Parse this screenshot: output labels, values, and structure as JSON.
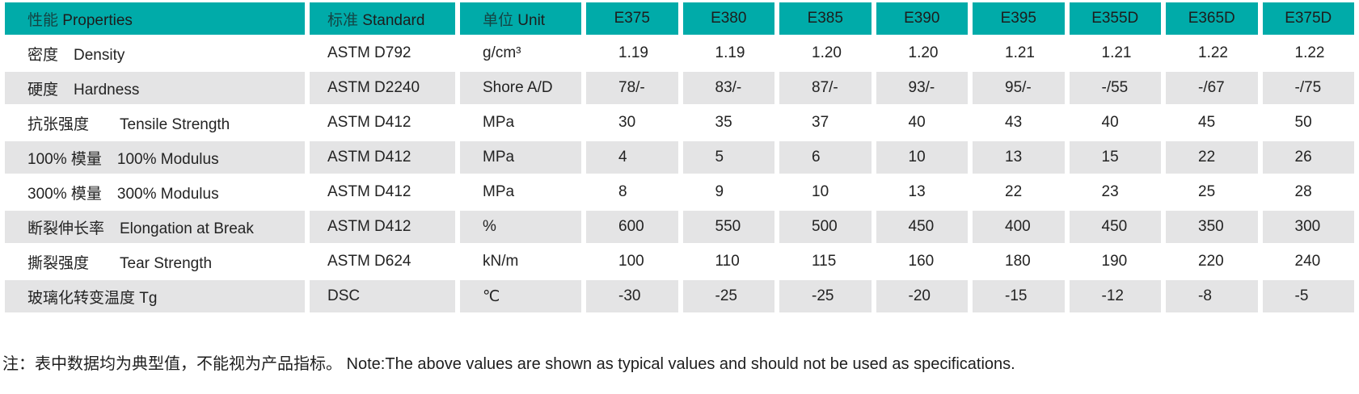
{
  "theme": {
    "header_bg": "#00aba9",
    "stripe_bg": "#e4e4e5",
    "text_color": "#232323"
  },
  "table": {
    "columns": [
      {
        "zh": "性能",
        "en": "Properties"
      },
      {
        "zh": "标准",
        "en": "Standard"
      },
      {
        "zh": "单位",
        "en": "Unit"
      },
      {
        "label": "E375"
      },
      {
        "label": "E380"
      },
      {
        "label": "E385"
      },
      {
        "label": "E390"
      },
      {
        "label": "E395"
      },
      {
        "label": "E355D"
      },
      {
        "label": "E365D"
      },
      {
        "label": "E375D"
      }
    ],
    "rows": [
      {
        "property": "密度　Density",
        "standard": "ASTM D792",
        "unit": "g/cm³",
        "values": [
          "1.19",
          "1.19",
          "1.20",
          "1.20",
          "1.21",
          "1.21",
          "1.22",
          "1.22"
        ]
      },
      {
        "property": "硬度　Hardness",
        "standard": "ASTM D2240",
        "unit": "Shore A/D",
        "values": [
          "78/-",
          "83/-",
          "87/-",
          "93/-",
          "95/-",
          "-/55",
          "-/67",
          "-/75"
        ]
      },
      {
        "property": "抗张强度　　Tensile Strength",
        "standard": "ASTM D412",
        "unit": "MPa",
        "values": [
          "30",
          "35",
          "37",
          "40",
          "43",
          "40",
          "45",
          "50"
        ]
      },
      {
        "property": "100% 模量　100% Modulus",
        "standard": "ASTM D412",
        "unit": "MPa",
        "values": [
          "4",
          "5",
          "6",
          "10",
          "13",
          "15",
          "22",
          "26"
        ]
      },
      {
        "property": "300% 模量　300% Modulus",
        "standard": "ASTM D412",
        "unit": "MPa",
        "values": [
          "8",
          "9",
          "10",
          "13",
          "22",
          "23",
          "25",
          "28"
        ]
      },
      {
        "property": "断裂伸长率　Elongation at Break",
        "standard": "ASTM D412",
        "unit": "%",
        "values": [
          "600",
          "550",
          "500",
          "450",
          "400",
          "450",
          "350",
          "300"
        ]
      },
      {
        "property": "撕裂强度　　Tear Strength",
        "standard": "ASTM D624",
        "unit": "kN/m",
        "values": [
          "100",
          "110",
          "115",
          "160",
          "180",
          "190",
          "220",
          "240"
        ]
      },
      {
        "property": "玻璃化转变温度 Tg",
        "standard": "DSC",
        "unit": "℃",
        "values": [
          "-30",
          "-25",
          "-25",
          "-20",
          "-15",
          "-12",
          "-8",
          "-5"
        ]
      }
    ]
  },
  "note": "注：表中数据均为典型值，不能视为产品指标。 Note:The above values are shown as typical values and should not be used as specifications."
}
